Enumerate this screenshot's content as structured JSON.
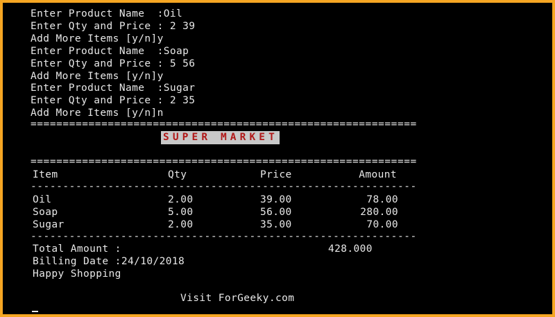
{
  "prompts": [
    "Enter Product Name  :Oil",
    "Enter Qty and Price : 2 39",
    "Add More Items [y/n]y",
    "Enter Product Name  :Soap",
    "Enter Qty and Price : 5 56",
    "Add More Items [y/n]y",
    "Enter Product Name  :Sugar",
    "Enter Qty and Price : 2 35",
    "Add More Items [y/n]n"
  ],
  "separator_double": "============================================================",
  "separator_single": "------------------------------------------------------------",
  "banner": "SUPER MARKET",
  "table": {
    "headers": {
      "item": "Item",
      "qty": "Qty",
      "price": "Price",
      "amount": "Amount"
    },
    "rows": [
      {
        "item": "Oil",
        "qty": "2.00",
        "price": "39.00",
        "amount": "78.00"
      },
      {
        "item": "Soap",
        "qty": "5.00",
        "price": "56.00",
        "amount": "280.00"
      },
      {
        "item": "Sugar",
        "qty": "2.00",
        "price": "35.00",
        "amount": "70.00"
      }
    ]
  },
  "summary": {
    "total_label": "Total Amount :",
    "total_value": "428.000",
    "billing_date": "Billing Date :24/10/2018",
    "greeting": "Happy Shopping",
    "visit": "Visit ForGeeky.com"
  },
  "colors": {
    "frame": "#f5a623",
    "background": "#000000",
    "text": "#e8e8e8",
    "banner_bg": "#c8c8c8",
    "banner_text": "#b01818"
  }
}
